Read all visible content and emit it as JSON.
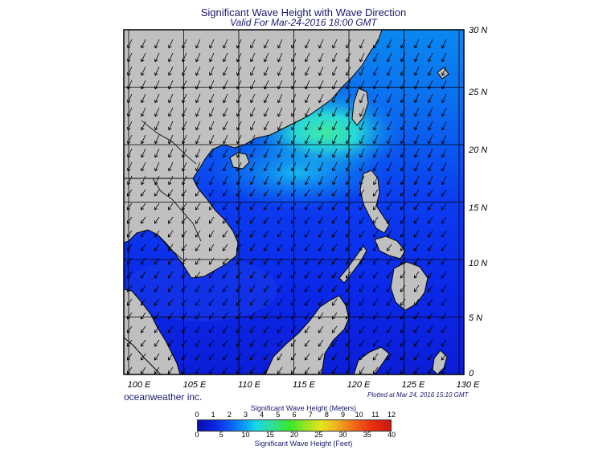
{
  "header": {
    "title": "Significant Wave Height with Wave Direction",
    "subtitle": "Valid For Mar-24-2016 18:00 GMT"
  },
  "map": {
    "x_axis_labels": [
      "100 E",
      "105 E",
      "110 E",
      "115 E",
      "120 E",
      "125 E",
      "130 E"
    ],
    "y_axis_labels": [
      "30 N",
      "25 N",
      "20 N",
      "15 N",
      "10 N",
      "5 N",
      "0"
    ],
    "lon_range": [
      99,
      130
    ],
    "lat_range": [
      0,
      30
    ],
    "colors": {
      "land": "#c0c0c0",
      "coast": "#000000",
      "grid": "#000000"
    }
  },
  "footer": {
    "brand": "oceanweather inc.",
    "plotted": "Plotted at Mar 24, 2016 15:10 GMT"
  },
  "colorbar": {
    "title_top": "Significant Wave Height (Meters)",
    "ticks_meters": [
      "0",
      "1",
      "2",
      "3",
      "4",
      "5",
      "6",
      "7",
      "8",
      "9",
      "10",
      "11",
      "12"
    ],
    "ticks_feet": [
      "0",
      "5",
      "10",
      "15",
      "20",
      "25",
      "30",
      "35",
      "40"
    ],
    "title_bottom": "Significant Wave Height (Feet)"
  }
}
